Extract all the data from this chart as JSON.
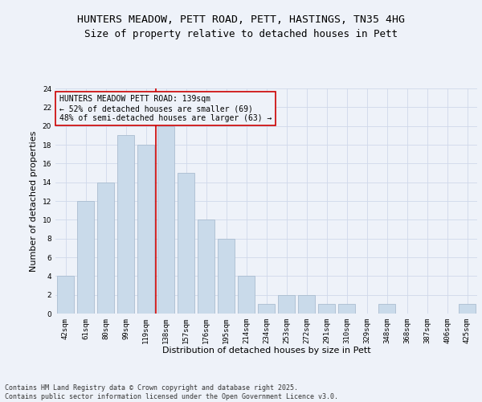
{
  "title": "HUNTERS MEADOW, PETT ROAD, PETT, HASTINGS, TN35 4HG",
  "subtitle": "Size of property relative to detached houses in Pett",
  "xlabel": "Distribution of detached houses by size in Pett",
  "ylabel": "Number of detached properties",
  "bar_labels": [
    "42sqm",
    "61sqm",
    "80sqm",
    "99sqm",
    "119sqm",
    "138sqm",
    "157sqm",
    "176sqm",
    "195sqm",
    "214sqm",
    "234sqm",
    "253sqm",
    "272sqm",
    "291sqm",
    "310sqm",
    "329sqm",
    "348sqm",
    "368sqm",
    "387sqm",
    "406sqm",
    "425sqm"
  ],
  "bar_values": [
    4,
    12,
    14,
    19,
    18,
    20,
    15,
    10,
    8,
    4,
    1,
    2,
    2,
    1,
    1,
    0,
    1,
    0,
    0,
    0,
    1
  ],
  "bar_color": "#c9daea",
  "bar_edge_color": "#aabdd0",
  "vline_color": "#cc0000",
  "annotation_text": "HUNTERS MEADOW PETT ROAD: 139sqm\n← 52% of detached houses are smaller (69)\n48% of semi-detached houses are larger (63) →",
  "annotation_box_edge_color": "#cc0000",
  "grid_color": "#d0d8ea",
  "ylim": [
    0,
    24
  ],
  "yticks": [
    0,
    2,
    4,
    6,
    8,
    10,
    12,
    14,
    16,
    18,
    20,
    22,
    24
  ],
  "footer": "Contains HM Land Registry data © Crown copyright and database right 2025.\nContains public sector information licensed under the Open Government Licence v3.0.",
  "bg_color": "#eef2f9",
  "title_fontsize": 9.5,
  "subtitle_fontsize": 9,
  "xlabel_fontsize": 8,
  "ylabel_fontsize": 8,
  "tick_fontsize": 6.5,
  "annotation_fontsize": 7,
  "footer_fontsize": 6
}
